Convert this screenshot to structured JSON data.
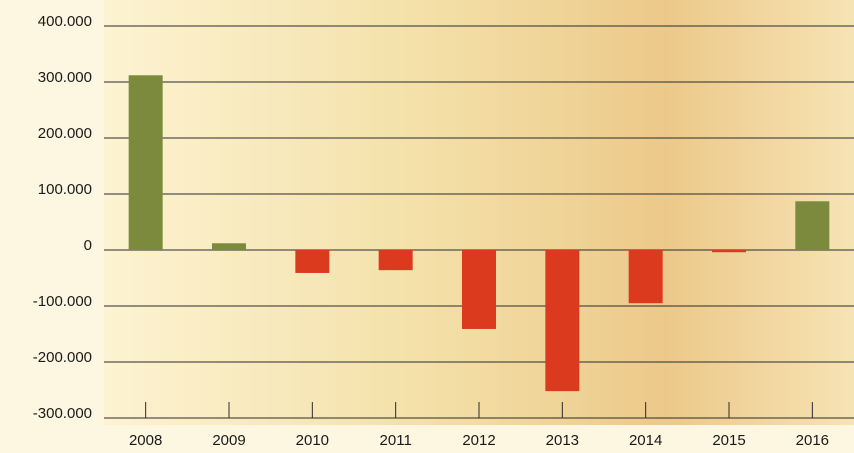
{
  "chart_data": {
    "type": "bar",
    "categories": [
      "2008",
      "2009",
      "2010",
      "2011",
      "2012",
      "2013",
      "2014",
      "2015",
      "2016"
    ],
    "values": [
      312000,
      12000,
      -41000,
      -36000,
      -141000,
      -252000,
      -95000,
      -4000,
      87000
    ],
    "positive_color": "#7b8a3c",
    "negative_color": "#dc3a1f",
    "ylim": [
      -300000,
      400000
    ],
    "yticks": [
      {
        "value": -300000,
        "label": "-300.000"
      },
      {
        "value": -200000,
        "label": "-200.000"
      },
      {
        "value": -100000,
        "label": "-100.000"
      },
      0,
      {
        "value": 100000,
        "label": "100.000"
      },
      {
        "value": 200000,
        "label": "200.000"
      },
      {
        "value": 300000,
        "label": "300.000"
      },
      {
        "value": 400000,
        "label": "400.000"
      }
    ],
    "grid": true
  }
}
